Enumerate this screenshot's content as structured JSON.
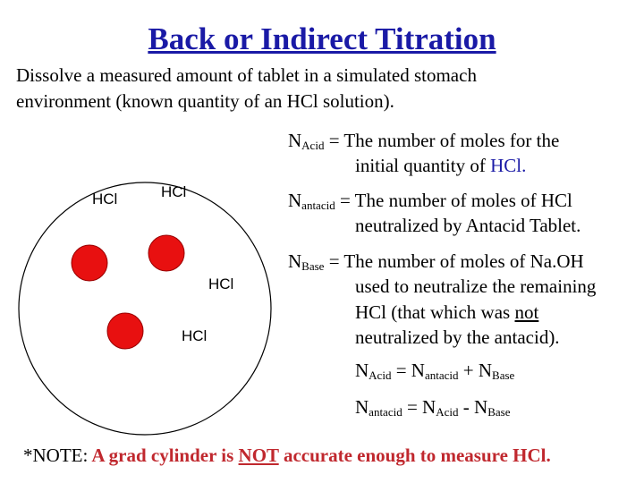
{
  "title": "Back or Indirect Titration",
  "intro": [
    "Dissolve a measured amount of tablet in a simulated stomach",
    "environment (known quantity of an HCl solution)."
  ],
  "diagram": {
    "labels": [
      "HCl",
      "HCl",
      "HCl",
      "HCl"
    ]
  },
  "definitions": [
    {
      "symbol": "N",
      "subscript": "Acid",
      "lines": [
        [
          "= The number of moles for the"
        ],
        [
          "initial quantity of ",
          "HCl."
        ]
      ]
    },
    {
      "symbol": "N",
      "subscript": "antacid",
      "lines": [
        [
          "= The number of moles of HCl"
        ],
        [
          "neutralized by Antacid Tablet."
        ]
      ]
    },
    {
      "symbol": "N",
      "subscript": "Base",
      "lines": [
        [
          "= The number of moles of Na.OH"
        ],
        [
          "used to neutralize the remaining"
        ],
        [
          "HCl (that which was ",
          "not"
        ],
        [
          "neutralized by the antacid)."
        ]
      ]
    }
  ],
  "equations": [
    [
      "N",
      "Acid",
      " = N",
      "antacid",
      " + N",
      "Base"
    ],
    [
      "N",
      "antacid",
      " = N",
      "Acid",
      " - N",
      "Base"
    ]
  ],
  "note": {
    "label": "*NOTE:",
    "before": " A grad cylinder is ",
    "emphasis": "NOT",
    "after": " accurate enough to measure HCl."
  }
}
